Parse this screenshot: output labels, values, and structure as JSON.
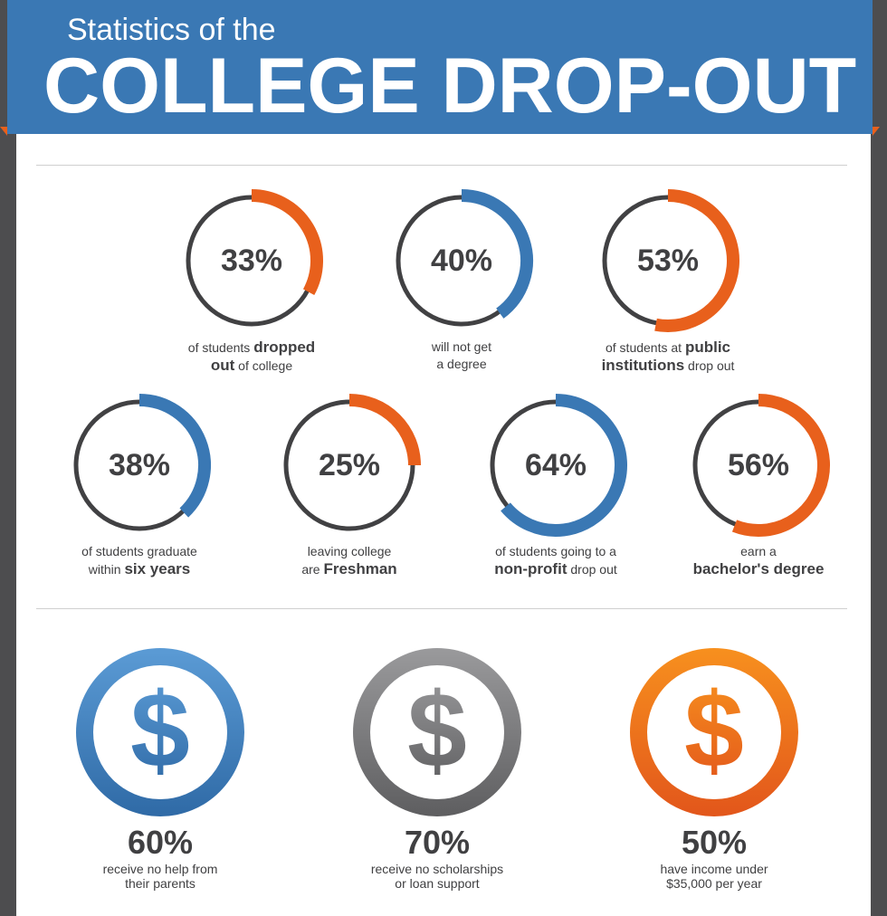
{
  "header": {
    "subtitle": "Statistics of the",
    "title": "COLLEGE DROP-OUT"
  },
  "colors": {
    "blue": "#3a78b4",
    "orange": "#e8601c",
    "dark": "#404042",
    "gray": "#7a7a7c"
  },
  "chart_data": {
    "type": "donut-stats",
    "rings": [
      {
        "value": 33,
        "label": "33%",
        "color": "orange",
        "caption": [
          "of students ",
          {
            "b": "dropped"
          },
          "|",
          {
            "b": "out"
          },
          " of college"
        ]
      },
      {
        "value": 40,
        "label": "40%",
        "color": "blue",
        "caption": [
          "will not get",
          "|",
          "a degree"
        ]
      },
      {
        "value": 53,
        "label": "53%",
        "color": "orange",
        "caption": [
          "of students at ",
          {
            "b": "public"
          },
          "|",
          {
            "b": "institutions"
          },
          " drop out"
        ]
      },
      {
        "value": 38,
        "label": "38%",
        "color": "blue",
        "caption": [
          "of students graduate",
          "|",
          "within ",
          {
            "b": "six years"
          }
        ]
      },
      {
        "value": 25,
        "label": "25%",
        "color": "orange",
        "caption": [
          "leaving college",
          "|",
          "are ",
          {
            "b": "Freshman"
          }
        ]
      },
      {
        "value": 64,
        "label": "64%",
        "color": "blue",
        "caption": [
          "of students going to a",
          "|",
          {
            "b": "non-profit"
          },
          " drop out"
        ]
      },
      {
        "value": 56,
        "label": "56%",
        "color": "orange",
        "caption": [
          "earn a",
          "|",
          {
            "b": "bachelor's degree"
          }
        ]
      }
    ],
    "money": [
      {
        "value": 60,
        "label": "60%",
        "color": "blue",
        "caption": [
          "receive no help from",
          "their parents"
        ]
      },
      {
        "value": 70,
        "label": "70%",
        "color": "gray",
        "caption": [
          "receive no scholarships",
          "or loan support"
        ]
      },
      {
        "value": 50,
        "label": "50%",
        "color": "orange",
        "caption": [
          "have income under",
          "$35,000 per year"
        ]
      }
    ]
  }
}
